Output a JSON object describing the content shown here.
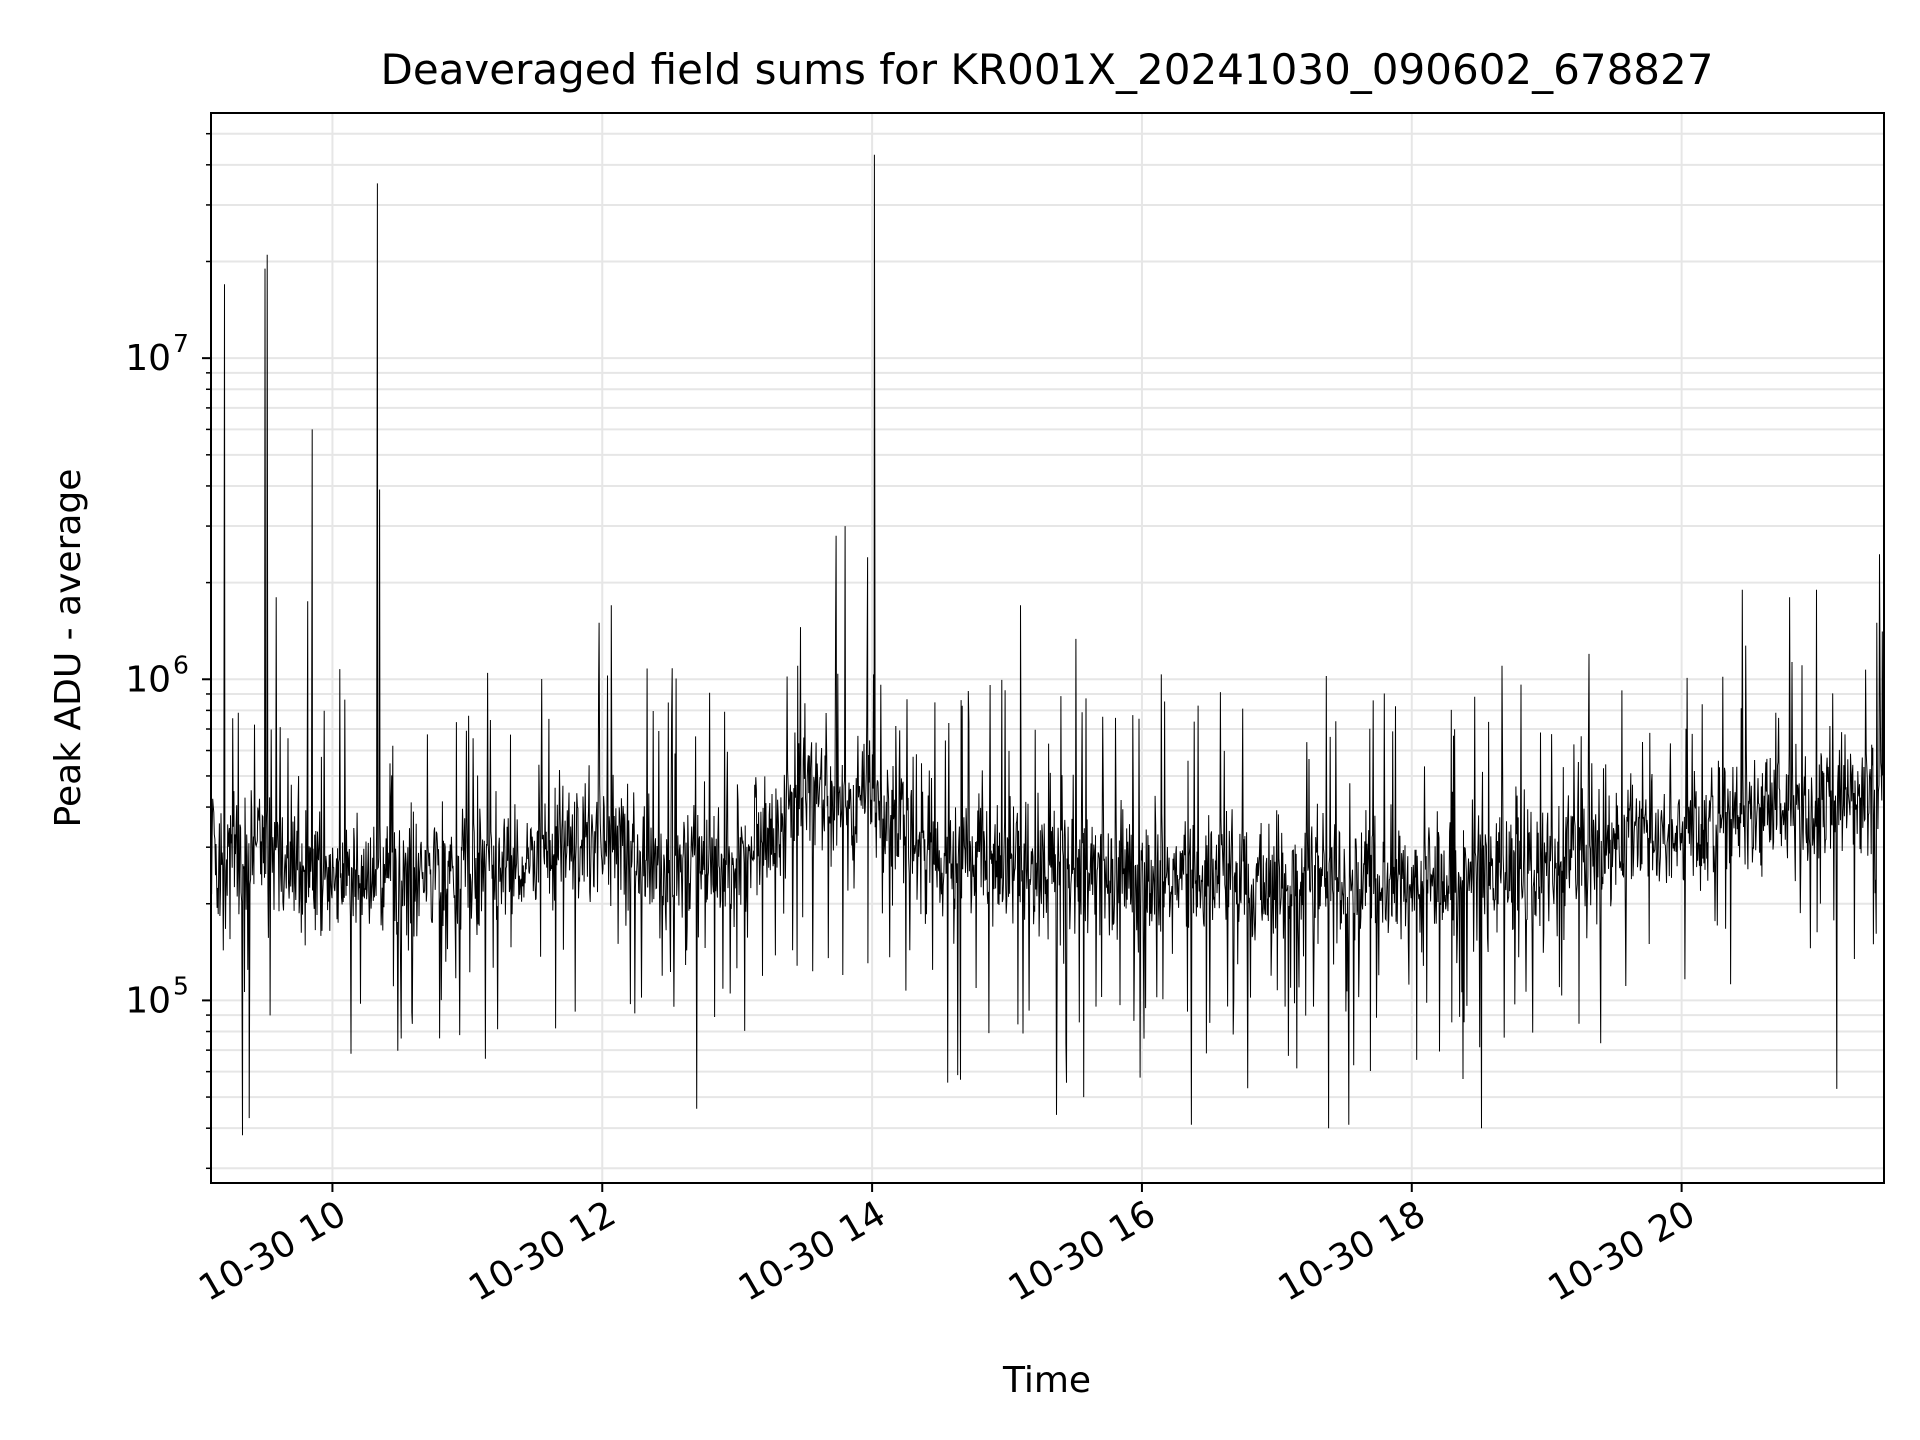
{
  "chart_data": {
    "type": "line",
    "title": "Deaveraged field sums for KR001X_20241030_090602_678827",
    "xlabel": "Time",
    "ylabel": "Peak ADU - average",
    "x_axis": {
      "kind": "datetime",
      "range": [
        "2024-10-30 09:06",
        "2024-10-30 21:30"
      ],
      "ticks": [
        "2024-10-30 10:00",
        "2024-10-30 12:00",
        "2024-10-30 14:00",
        "2024-10-30 16:00",
        "2024-10-30 18:00",
        "2024-10-30 20:00"
      ],
      "tick_labels": [
        "10-30 10",
        "10-30 12",
        "10-30 14",
        "10-30 16",
        "10-30 18",
        "10-30 20"
      ]
    },
    "y_axis": {
      "scale": "log",
      "range": [
        27000,
        58000000
      ],
      "ticks": [
        100000,
        1000000,
        10000000
      ],
      "tick_labels": [
        "10",
        "10",
        "10"
      ],
      "tick_exponents": [
        "5",
        "6",
        "7"
      ]
    },
    "grid": true,
    "line_color": "#000000",
    "series": [
      {
        "baseline": [
          {
            "x": "2024-10-30 09:06",
            "y": 280000
          },
          {
            "x": "2024-10-30 09:30",
            "y": 300000
          },
          {
            "x": "2024-10-30 10:00",
            "y": 240000
          },
          {
            "x": "2024-10-30 11:00",
            "y": 250000
          },
          {
            "x": "2024-10-30 12:00",
            "y": 320000
          },
          {
            "x": "2024-10-30 12:30",
            "y": 250000
          },
          {
            "x": "2024-10-30 13:00",
            "y": 260000
          },
          {
            "x": "2024-10-30 13:30",
            "y": 450000
          },
          {
            "x": "2024-10-30 14:00",
            "y": 420000
          },
          {
            "x": "2024-10-30 14:30",
            "y": 280000
          },
          {
            "x": "2024-10-30 15:00",
            "y": 260000
          },
          {
            "x": "2024-10-30 16:00",
            "y": 250000
          },
          {
            "x": "2024-10-30 17:00",
            "y": 240000
          },
          {
            "x": "2024-10-30 18:00",
            "y": 240000
          },
          {
            "x": "2024-10-30 19:00",
            "y": 260000
          },
          {
            "x": "2024-10-30 19:30",
            "y": 300000
          },
          {
            "x": "2024-10-30 20:00",
            "y": 340000
          },
          {
            "x": "2024-10-30 21:00",
            "y": 400000
          },
          {
            "x": "2024-10-30 21:30",
            "y": 450000
          }
        ],
        "spikes": [
          {
            "x": "2024-10-30 09:12",
            "y": 17000000
          },
          {
            "x": "2024-10-30 09:30",
            "y": 19000000
          },
          {
            "x": "2024-10-30 09:31",
            "y": 21000000
          },
          {
            "x": "2024-10-30 09:51",
            "y": 6000000
          },
          {
            "x": "2024-10-30 10:20",
            "y": 35000000
          },
          {
            "x": "2024-10-30 10:21",
            "y": 3900000
          },
          {
            "x": "2024-10-30 13:44",
            "y": 2800000
          },
          {
            "x": "2024-10-30 13:48",
            "y": 3000000
          },
          {
            "x": "2024-10-30 13:58",
            "y": 2400000
          },
          {
            "x": "2024-10-30 14:01",
            "y": 43000000
          },
          {
            "x": "2024-10-30 21:28",
            "y": 2450000
          },
          {
            "x": "2024-10-30 09:35",
            "y": 1800000
          },
          {
            "x": "2024-10-30 09:49",
            "y": 1750000
          },
          {
            "x": "2024-10-30 12:04",
            "y": 1700000
          },
          {
            "x": "2024-10-30 15:06",
            "y": 1700000
          },
          {
            "x": "2024-10-30 20:27",
            "y": 1900000
          },
          {
            "x": "2024-10-30 20:48",
            "y": 1800000
          },
          {
            "x": "2024-10-30 21:00",
            "y": 1900000
          }
        ],
        "dips": [
          {
            "x": "2024-10-30 09:20",
            "y": 38000
          },
          {
            "x": "2024-10-30 09:23",
            "y": 43000
          },
          {
            "x": "2024-10-30 12:42",
            "y": 46000
          },
          {
            "x": "2024-10-30 15:22",
            "y": 44000
          },
          {
            "x": "2024-10-30 16:22",
            "y": 41000
          },
          {
            "x": "2024-10-30 17:23",
            "y": 40000
          },
          {
            "x": "2024-10-30 17:32",
            "y": 41000
          },
          {
            "x": "2024-10-30 18:31",
            "y": 40000
          },
          {
            "x": "2024-10-30 21:09",
            "y": 53000
          }
        ]
      }
    ]
  }
}
